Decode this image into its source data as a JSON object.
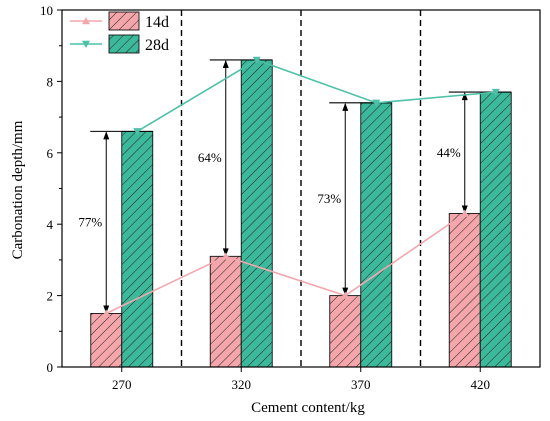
{
  "chart_data": {
    "type": "bar",
    "categories": [
      "270",
      "320",
      "370",
      "420"
    ],
    "series": [
      {
        "name": "14d",
        "values": [
          1.5,
          3.1,
          2.0,
          4.3
        ],
        "color": "#f4a6ab",
        "line_color": "#f2a7ae",
        "marker": "triangle-up"
      },
      {
        "name": "28d",
        "values": [
          6.6,
          8.6,
          7.4,
          7.7
        ],
        "color": "#3cb89a",
        "line_color": "#4cc1a8",
        "marker": "triangle-down"
      }
    ],
    "annotations": [
      "77%",
      "64%",
      "73%",
      "44%"
    ],
    "xlabel": "Cement content/kg",
    "ylabel": "Carbonation depth/mm",
    "ylim": [
      0,
      10
    ],
    "yticks": [
      "0",
      "2",
      "4",
      "6",
      "8",
      "10"
    ],
    "grid": false,
    "legend_position": "top-left",
    "bar_hatch": "diagonal",
    "dashed_separators": true
  }
}
